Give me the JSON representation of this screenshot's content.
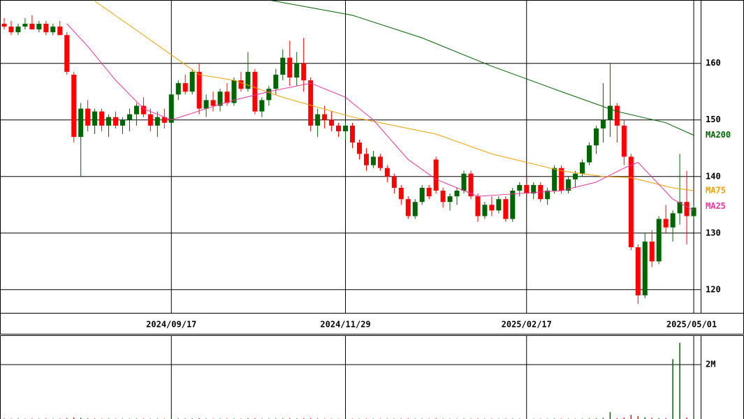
{
  "chart_data": {
    "type": "candlestick",
    "categories": [
      null,
      null,
      null,
      null,
      null,
      null,
      null,
      null,
      null,
      null,
      null,
      null,
      null,
      null,
      null,
      null,
      null,
      null,
      null,
      null,
      null,
      null,
      null,
      null,
      "2024/09/17",
      null,
      null,
      null,
      null,
      null,
      null,
      null,
      null,
      null,
      null,
      null,
      null,
      null,
      null,
      null,
      null,
      null,
      null,
      null,
      null,
      null,
      null,
      null,
      null,
      "2024/11/29",
      null,
      null,
      null,
      null,
      null,
      null,
      null,
      null,
      null,
      null,
      null,
      null,
      null,
      null,
      null,
      null,
      null,
      null,
      null,
      null,
      null,
      null,
      null,
      null,
      null,
      "2025/02/17",
      null,
      null,
      null,
      null,
      null,
      null,
      null,
      null,
      null,
      null,
      null,
      null,
      null,
      null,
      null,
      null,
      null,
      null,
      null,
      null,
      null,
      null,
      null,
      "2025/05/01"
    ],
    "open": [
      167,
      166.5,
      165.5,
      166.5,
      167,
      166,
      167,
      165.5,
      166.5,
      165,
      158,
      147,
      152,
      149,
      151.5,
      149,
      150.5,
      149,
      150,
      151,
      152.5,
      151,
      149,
      150.5,
      149.5,
      154.5,
      156.5,
      155,
      158.5,
      152,
      153.5,
      152.5,
      155,
      153,
      157,
      155.5,
      158.5,
      151.5,
      153.5,
      155.5,
      158,
      161,
      157.5,
      160,
      157,
      149,
      151,
      150,
      149,
      148,
      149,
      146,
      144,
      142,
      143.5,
      141.5,
      140,
      138,
      136,
      133,
      135.5,
      138,
      143,
      137.5,
      135.5,
      136.5,
      137.5,
      140.5,
      136.5,
      133,
      135,
      134,
      136,
      132.5,
      137.5,
      138.5,
      137,
      138.5,
      136,
      137.5,
      141.5,
      137.5,
      139.5,
      140.5,
      142.5,
      145.5,
      148.5,
      150,
      152.5,
      149,
      143.5,
      127.5,
      119,
      128.5,
      125,
      132.5,
      131,
      133.5,
      135.5,
      133
    ],
    "high": [
      168,
      167.5,
      167,
      168,
      168.5,
      167.5,
      167.5,
      167,
      167.5,
      165.5,
      158.5,
      153,
      153.5,
      152,
      152,
      151,
      151.5,
      150.5,
      152,
      153,
      154,
      152,
      151.5,
      152,
      155,
      157,
      158,
      159,
      160,
      154.5,
      155,
      155.5,
      156.5,
      157.5,
      158.5,
      162,
      159,
      154,
      156,
      159,
      162.5,
      164,
      162,
      164.5,
      157.5,
      152,
      152.5,
      151.5,
      149.5,
      149.5,
      149.5,
      146.5,
      145,
      144.5,
      144,
      142,
      140.5,
      138.5,
      136.5,
      136,
      138.5,
      138.5,
      143.5,
      138,
      137,
      138,
      141,
      141,
      137,
      135.5,
      136.5,
      136.5,
      136.5,
      138,
      139,
      140,
      139,
      139,
      138,
      142,
      142,
      140,
      141,
      143,
      146,
      149,
      156.5,
      160,
      153,
      150,
      144,
      128,
      130,
      130.5,
      133,
      135,
      134,
      144,
      141,
      135
    ],
    "low": [
      166,
      165,
      165,
      166,
      166,
      165.5,
      165,
      165,
      165,
      158,
      146,
      140,
      148,
      147.5,
      148,
      147,
      148.5,
      147.5,
      148,
      149,
      150.5,
      148,
      147,
      148.5,
      149,
      153.5,
      154.5,
      154.5,
      151,
      150.5,
      151.5,
      151.5,
      152.5,
      152.5,
      155,
      155,
      151,
      150.5,
      152.5,
      154.5,
      157,
      156,
      156,
      155,
      148,
      147,
      148.5,
      148,
      147,
      146.5,
      145,
      143,
      141,
      141.5,
      141,
      139,
      137,
      135,
      132.5,
      132.5,
      135,
      136,
      137,
      134.5,
      134,
      135,
      137,
      136,
      132,
      132.5,
      133,
      133.5,
      132,
      132,
      136.5,
      136.5,
      136,
      135.5,
      135,
      137,
      137,
      137,
      138,
      140,
      142,
      144,
      146,
      147,
      146,
      142,
      127,
      117.5,
      118.5,
      124,
      124.5,
      130,
      128.5,
      131.5,
      128,
      132.5
    ],
    "close": [
      166.5,
      165.5,
      166.5,
      167,
      166,
      167,
      165.5,
      166.5,
      165,
      158.5,
      147,
      152,
      149,
      151.5,
      149,
      150.5,
      149,
      150,
      151,
      152.5,
      151,
      149,
      150.5,
      149.5,
      154.5,
      156.5,
      155,
      158.5,
      152,
      153.5,
      152.5,
      155,
      153,
      157,
      155.5,
      158.5,
      151.5,
      153.5,
      155.5,
      158,
      161,
      157.5,
      160,
      157,
      149,
      151,
      150,
      149,
      148,
      149,
      146,
      144,
      142,
      143.5,
      141.5,
      140,
      138,
      136,
      133,
      135.5,
      138,
      136.5,
      137.5,
      135.5,
      136.5,
      137.5,
      140.5,
      136.5,
      133,
      135,
      134,
      136,
      132.5,
      137.5,
      138.5,
      137,
      138.5,
      136,
      137.5,
      141.5,
      137.5,
      139.5,
      140.5,
      142.5,
      145.5,
      148.5,
      150,
      152.5,
      149,
      143.5,
      127.5,
      119,
      128.5,
      125,
      132.5,
      131,
      133.5,
      135.5,
      133,
      134.5
    ],
    "up_color": "#006400",
    "down_color": "#ff0000",
    "ylim": [
      115.9,
      171.2
    ],
    "yticks": [
      120,
      130,
      140,
      150,
      160
    ],
    "grid": true,
    "moving_averages": [
      {
        "name": "MA200",
        "color": "#006400",
        "x": [
          38,
          50,
          60,
          70,
          80,
          88,
          95,
          99
        ],
        "values": [
          171.2,
          168.5,
          164.5,
          159.5,
          155,
          151.5,
          149.5,
          147.3
        ]
      },
      {
        "name": "MA75",
        "color": "#f0a000",
        "x": [
          13,
          20,
          28,
          33,
          40,
          50,
          56,
          62,
          70,
          75,
          80,
          86,
          90,
          96,
          99
        ],
        "values": [
          171,
          165,
          158,
          157,
          154,
          150.5,
          149,
          147.5,
          144,
          142.5,
          141,
          140,
          139.8,
          138,
          137.5
        ]
      },
      {
        "name": "MA25",
        "color": "#e8369e",
        "x": [
          9,
          12,
          16,
          20,
          24,
          29,
          33,
          38,
          44,
          49,
          53,
          58,
          62,
          68,
          74,
          80,
          85,
          89,
          91,
          96,
          99
        ],
        "values": [
          167,
          163,
          157,
          152,
          150,
          152,
          153.5,
          155,
          156.5,
          154,
          150,
          143,
          139.5,
          136.5,
          137,
          137.5,
          139,
          141.5,
          142.5,
          136,
          134
        ]
      }
    ],
    "volume": {
      "ylim": [
        0,
        3080000
      ],
      "yticks": [
        {
          "value": 2000000,
          "label": "2M"
        }
      ],
      "values": [
        18000,
        12000,
        15000,
        10000,
        14000,
        12000,
        16000,
        11000,
        13000,
        30000,
        60000,
        40000,
        20000,
        15000,
        12000,
        14000,
        11000,
        13000,
        12000,
        15000,
        14000,
        12000,
        13000,
        11000,
        20000,
        18000,
        15000,
        17000,
        25000,
        16000,
        12000,
        14000,
        13000,
        15000,
        12000,
        22000,
        20000,
        14000,
        13000,
        16000,
        18000,
        22000,
        15000,
        20000,
        25000,
        16000,
        12000,
        11000,
        10000,
        12000,
        13000,
        12000,
        14000,
        11000,
        12000,
        13000,
        12000,
        14000,
        18000,
        12000,
        13000,
        11000,
        20000,
        12000,
        10000,
        11000,
        14000,
        12000,
        15000,
        11000,
        12000,
        10000,
        14000,
        13000,
        11000,
        12000,
        10000,
        12000,
        11000,
        15000,
        14000,
        12000,
        11000,
        13000,
        18000,
        22000,
        40000,
        250000,
        30000,
        50000,
        150000,
        100000,
        60000,
        40000,
        30000,
        25000,
        2200000,
        2800000,
        50000,
        20000
      ]
    }
  }
}
